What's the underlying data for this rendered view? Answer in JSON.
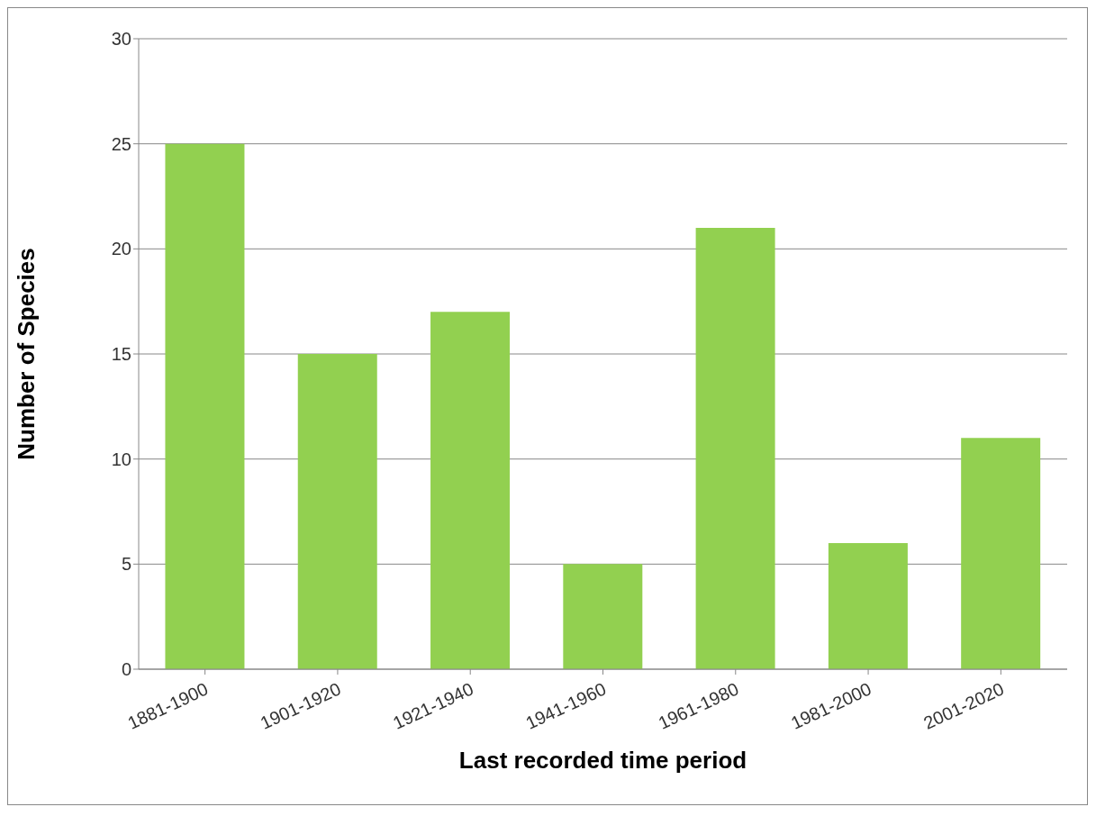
{
  "chart_data": {
    "type": "bar",
    "xlabel": "Last recorded time period",
    "ylabel": "Number of Species",
    "categories": [
      "1881-1900",
      "1901-1920",
      "1921-1940",
      "1941-1960",
      "1961-1980",
      "1981-2000",
      "2001-2020"
    ],
    "values": [
      25,
      15,
      17,
      5,
      21,
      6,
      11
    ],
    "color": "#92d050",
    "ylim": [
      0,
      30
    ],
    "yticks": [
      0,
      5,
      10,
      15,
      20,
      25,
      30
    ],
    "grid": "y",
    "legend": false
  }
}
